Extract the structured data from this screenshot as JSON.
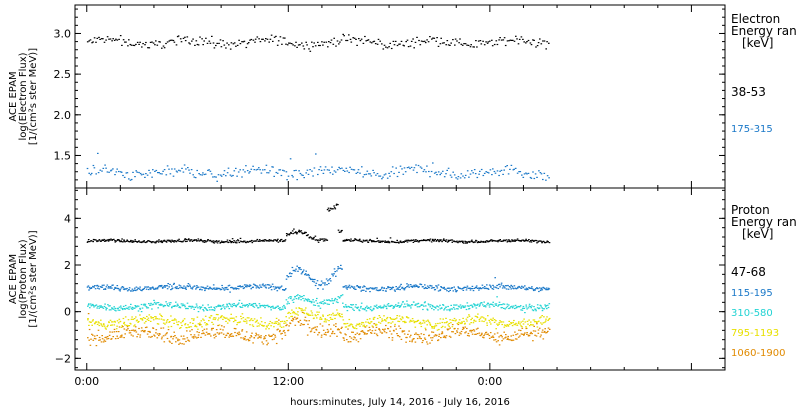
{
  "chart_data": [
    {
      "type": "scatter",
      "panel": "electron",
      "ylabel": [
        "ACE EPAM",
        "log(Electron Flux)",
        "[1/(cm²s ster MeV)]"
      ],
      "ylim": [
        1.1,
        3.35
      ],
      "yticks": [
        1.5,
        2.0,
        2.5,
        3.0
      ],
      "ytick_labels": [
        "1.5",
        "2.0",
        "2.5",
        "3.0"
      ],
      "legend_title": [
        "Electron",
        "Energy ran",
        "[keV]"
      ],
      "series": [
        {
          "name": "38-53",
          "color": "#000000",
          "base": 2.9,
          "noise": 0.05
        },
        {
          "name": "175-315",
          "color": "#1a78c8",
          "base": 1.3,
          "noise": 0.06
        }
      ]
    },
    {
      "type": "scatter",
      "panel": "proton",
      "ylabel": [
        "ACE EPAM",
        "log(Proton Flux)",
        "[1/(cm²s ster MeV)]"
      ],
      "ylim": [
        -2.5,
        5.3
      ],
      "yticks": [
        -2,
        0,
        2,
        4
      ],
      "ytick_labels": [
        "−2",
        "0",
        "2",
        "4"
      ],
      "legend_title": [
        "Proton",
        "Energy ran",
        "[keV]"
      ],
      "series": [
        {
          "name": "47-68",
          "color": "#000000",
          "base": 3.05,
          "noise": 0.05
        },
        {
          "name": "115-195",
          "color": "#1a78c8",
          "base": 1.05,
          "noise": 0.1
        },
        {
          "name": "310-580",
          "color": "#22d3d3",
          "base": 0.25,
          "noise": 0.12
        },
        {
          "name": "795-1193",
          "color": "#e8e000",
          "base": -0.4,
          "noise": 0.2
        },
        {
          "name": "1060-1900",
          "color": "#e08a00",
          "base": -0.95,
          "noise": 0.25
        }
      ]
    }
  ],
  "x_axis": {
    "label": "hours:minutes, July 14, 2016 - July 16, 2016",
    "range_hours": [
      -0.7,
      38.0
    ],
    "data_end_hours": 27.5,
    "major_ticks": [
      0,
      12,
      24,
      36
    ],
    "major_tick_labels": [
      "0:00",
      "12:00",
      "0:00",
      ""
    ],
    "minor_tick_step_hours": 2
  }
}
